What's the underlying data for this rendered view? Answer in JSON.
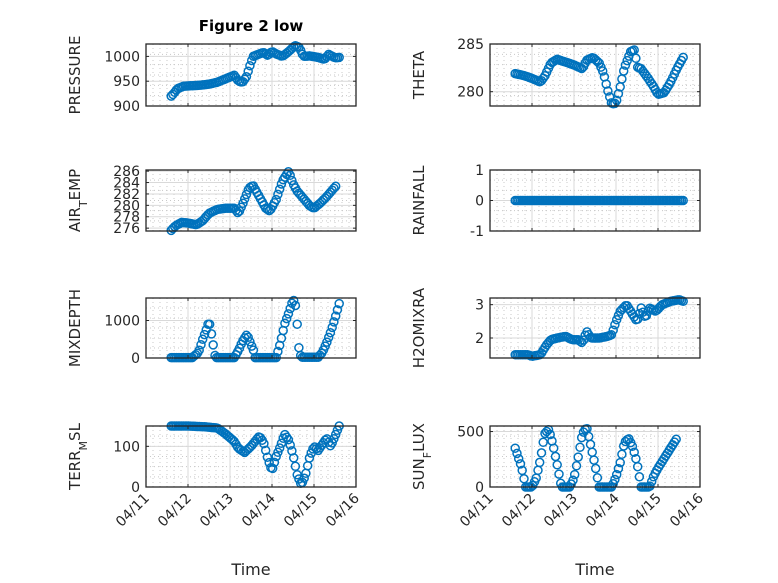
{
  "figure": {
    "title": "Figure 2 low",
    "marker_color": "#0072BD",
    "axis_color": "#262626",
    "grid_color": "#d9d9d9"
  },
  "chart_data": [
    {
      "type": "scatter",
      "panel": "top-left",
      "ylabel": "PRESSURE",
      "ylabel_sub": "",
      "ylabel_rest": "",
      "title": "Figure 2 low",
      "xlabel": "",
      "x_is_days_since": "04/11",
      "xlim": [
        0,
        5
      ],
      "ylim": [
        900,
        1025
      ],
      "yticks": [
        900,
        950,
        1000
      ],
      "xticks": [
        0,
        1,
        2,
        3,
        4,
        5
      ],
      "xticklabels": [
        "04/11",
        "04/12",
        "04/13",
        "04/14",
        "04/15",
        "04/16"
      ],
      "show_xticklabels": false,
      "grid": true,
      "minor_grid": true,
      "points": [
        [
          0.6,
          920
        ],
        [
          0.65,
          924
        ],
        [
          0.75,
          935
        ],
        [
          0.9,
          940
        ],
        [
          1.1,
          941
        ],
        [
          1.3,
          942
        ],
        [
          1.5,
          944
        ],
        [
          1.7,
          948
        ],
        [
          1.9,
          955
        ],
        [
          2.1,
          962
        ],
        [
          2.2,
          950
        ],
        [
          2.3,
          948
        ],
        [
          2.4,
          960
        ],
        [
          2.45,
          975
        ],
        [
          2.55,
          1000
        ],
        [
          2.7,
          1005
        ],
        [
          2.8,
          1008
        ],
        [
          2.9,
          1002
        ],
        [
          3.0,
          1010
        ],
        [
          3.1,
          1005
        ],
        [
          3.25,
          1000
        ],
        [
          3.4,
          1010
        ],
        [
          3.55,
          1022
        ],
        [
          3.65,
          1018
        ],
        [
          3.75,
          1000
        ],
        [
          3.9,
          1001
        ],
        [
          4.1,
          998
        ],
        [
          4.25,
          994
        ],
        [
          4.35,
          1004
        ],
        [
          4.5,
          997
        ],
        [
          4.6,
          998
        ]
      ]
    },
    {
      "type": "scatter",
      "panel": "top-right",
      "ylabel": "THETA",
      "ylabel_sub": "",
      "ylabel_rest": "",
      "xlim": [
        0,
        5
      ],
      "ylim": [
        278.5,
        285
      ],
      "yticks": [
        280,
        285
      ],
      "xticks": [
        0,
        1,
        2,
        3,
        4,
        5
      ],
      "xticklabels": [
        "04/11",
        "04/12",
        "04/13",
        "04/14",
        "04/15",
        "04/16"
      ],
      "show_xticklabels": false,
      "grid": true,
      "minor_grid": true,
      "points": [
        [
          0.6,
          281.9
        ],
        [
          0.8,
          281.7
        ],
        [
          1.0,
          281.4
        ],
        [
          1.2,
          281.0
        ],
        [
          1.3,
          281.6
        ],
        [
          1.45,
          283.0
        ],
        [
          1.6,
          283.4
        ],
        [
          1.8,
          283.1
        ],
        [
          2.0,
          282.8
        ],
        [
          2.2,
          282.4
        ],
        [
          2.3,
          283.3
        ],
        [
          2.45,
          283.6
        ],
        [
          2.6,
          283.0
        ],
        [
          2.7,
          282.0
        ],
        [
          2.8,
          280.2
        ],
        [
          2.9,
          278.7
        ],
        [
          3.0,
          278.8
        ],
        [
          3.1,
          280.5
        ],
        [
          3.2,
          282.5
        ],
        [
          3.35,
          284.2
        ],
        [
          3.45,
          284.4
        ],
        [
          3.5,
          282.6
        ],
        [
          3.6,
          282.4
        ],
        [
          3.75,
          281.5
        ],
        [
          3.9,
          280.5
        ],
        [
          4.0,
          279.7
        ],
        [
          4.15,
          279.9
        ],
        [
          4.3,
          281.0
        ],
        [
          4.45,
          282.4
        ],
        [
          4.6,
          283.6
        ]
      ]
    },
    {
      "type": "scatter",
      "panel": "second-left",
      "ylabel": "AIR",
      "ylabel_sub": "T",
      "ylabel_rest": "EMP",
      "xlim": [
        0,
        5
      ],
      "ylim": [
        275.5,
        286.2
      ],
      "yticks": [
        276,
        278,
        280,
        282,
        284,
        286
      ],
      "xticks": [
        0,
        1,
        2,
        3,
        4,
        5
      ],
      "xticklabels": [
        "04/11",
        "04/12",
        "04/13",
        "04/14",
        "04/15",
        "04/16"
      ],
      "show_xticklabels": false,
      "grid": true,
      "minor_grid": true,
      "points": [
        [
          0.6,
          275.6
        ],
        [
          0.7,
          276.4
        ],
        [
          0.85,
          277.0
        ],
        [
          1.0,
          276.9
        ],
        [
          1.2,
          276.6
        ],
        [
          1.35,
          277.3
        ],
        [
          1.5,
          278.6
        ],
        [
          1.7,
          279.3
        ],
        [
          1.9,
          279.5
        ],
        [
          2.1,
          279.5
        ],
        [
          2.2,
          278.6
        ],
        [
          2.3,
          280.2
        ],
        [
          2.45,
          283.0
        ],
        [
          2.55,
          283.5
        ],
        [
          2.7,
          281.5
        ],
        [
          2.85,
          279.5
        ],
        [
          2.95,
          279.0
        ],
        [
          3.1,
          281.0
        ],
        [
          3.25,
          284.3
        ],
        [
          3.4,
          286.0
        ],
        [
          3.5,
          283.8
        ],
        [
          3.6,
          282.5
        ],
        [
          3.75,
          281.2
        ],
        [
          3.9,
          279.9
        ],
        [
          4.0,
          279.5
        ],
        [
          4.15,
          280.4
        ],
        [
          4.3,
          281.5
        ],
        [
          4.45,
          282.8
        ],
        [
          4.55,
          283.6
        ]
      ]
    },
    {
      "type": "scatter",
      "panel": "second-right",
      "ylabel": "RAINFALL",
      "ylabel_sub": "",
      "ylabel_rest": "",
      "xlim": [
        0,
        5
      ],
      "ylim": [
        -1,
        1
      ],
      "yticks": [
        -1,
        0,
        1
      ],
      "xticks": [
        0,
        1,
        2,
        3,
        4,
        5
      ],
      "xticklabels": [
        "04/11",
        "04/12",
        "04/13",
        "04/14",
        "04/15",
        "04/16"
      ],
      "show_xticklabels": false,
      "grid": true,
      "minor_grid": true,
      "points": [
        [
          0.6,
          0
        ],
        [
          4.6,
          0
        ]
      ]
    },
    {
      "type": "scatter",
      "panel": "third-left",
      "ylabel": "MIXDEPTH",
      "ylabel_sub": "",
      "ylabel_rest": "",
      "xlim": [
        0,
        5
      ],
      "ylim": [
        0,
        1600
      ],
      "yticks": [
        0,
        1000
      ],
      "xticks": [
        0,
        1,
        2,
        3,
        4,
        5
      ],
      "xticklabels": [
        "04/11",
        "04/12",
        "04/13",
        "04/14",
        "04/15",
        "04/16"
      ],
      "show_xticklabels": false,
      "grid": true,
      "minor_grid": true,
      "points": [
        [
          0.6,
          10
        ],
        [
          1.1,
          10
        ],
        [
          1.25,
          150
        ],
        [
          1.35,
          500
        ],
        [
          1.45,
          800
        ],
        [
          1.5,
          1000
        ],
        [
          1.55,
          700
        ],
        [
          1.6,
          350
        ],
        [
          1.65,
          10
        ],
        [
          2.1,
          10
        ],
        [
          2.2,
          200
        ],
        [
          2.3,
          450
        ],
        [
          2.4,
          620
        ],
        [
          2.45,
          520
        ],
        [
          2.5,
          350
        ],
        [
          2.55,
          250
        ],
        [
          2.6,
          10
        ],
        [
          3.1,
          10
        ],
        [
          3.2,
          400
        ],
        [
          3.3,
          900
        ],
        [
          3.4,
          1200
        ],
        [
          3.5,
          1550
        ],
        [
          3.55,
          1500
        ],
        [
          3.6,
          900
        ],
        [
          3.65,
          150
        ],
        [
          3.7,
          20
        ],
        [
          4.1,
          20
        ],
        [
          4.2,
          150
        ],
        [
          4.3,
          400
        ],
        [
          4.4,
          700
        ],
        [
          4.5,
          1050
        ],
        [
          4.6,
          1450
        ]
      ]
    },
    {
      "type": "scatter",
      "panel": "third-right",
      "ylabel": "H2OMIXRA",
      "ylabel_sub": "",
      "ylabel_rest": "",
      "xlim": [
        0,
        5
      ],
      "ylim": [
        1.4,
        3.2
      ],
      "yticks": [
        2,
        3
      ],
      "xticks": [
        0,
        1,
        2,
        3,
        4,
        5
      ],
      "xticklabels": [
        "04/11",
        "04/12",
        "04/13",
        "04/14",
        "04/15",
        "04/16"
      ],
      "show_xticklabels": false,
      "grid": true,
      "minor_grid": true,
      "points": [
        [
          0.6,
          1.5
        ],
        [
          0.9,
          1.5
        ],
        [
          1.0,
          1.45
        ],
        [
          1.2,
          1.5
        ],
        [
          1.35,
          1.8
        ],
        [
          1.45,
          1.95
        ],
        [
          1.6,
          2.0
        ],
        [
          1.8,
          2.05
        ],
        [
          1.95,
          1.95
        ],
        [
          2.1,
          1.95
        ],
        [
          2.2,
          1.85
        ],
        [
          2.3,
          2.2
        ],
        [
          2.4,
          2.0
        ],
        [
          2.6,
          2.0
        ],
        [
          2.8,
          2.05
        ],
        [
          2.9,
          2.1
        ],
        [
          3.0,
          2.5
        ],
        [
          3.1,
          2.8
        ],
        [
          3.25,
          3.0
        ],
        [
          3.4,
          2.7
        ],
        [
          3.5,
          2.5
        ],
        [
          3.6,
          2.9
        ],
        [
          3.7,
          2.6
        ],
        [
          3.8,
          2.9
        ],
        [
          3.95,
          2.8
        ],
        [
          4.1,
          3.0
        ],
        [
          4.3,
          3.1
        ],
        [
          4.5,
          3.15
        ],
        [
          4.6,
          3.1
        ]
      ]
    },
    {
      "type": "scatter",
      "panel": "bottom-left",
      "ylabel": "TERR",
      "ylabel_sub": "M",
      "ylabel_rest": "SL",
      "xlim": [
        0,
        5
      ],
      "ylim": [
        0,
        150
      ],
      "yticks": [
        0,
        100
      ],
      "xticks": [
        0,
        1,
        2,
        3,
        4,
        5
      ],
      "xticklabels": [
        "04/11",
        "04/12",
        "04/13",
        "04/14",
        "04/15",
        "04/16"
      ],
      "show_xticklabels": true,
      "grid": true,
      "minor_grid": true,
      "xlabel": "Time",
      "points": [
        [
          0.6,
          150
        ],
        [
          1.0,
          150
        ],
        [
          1.4,
          148
        ],
        [
          1.7,
          145
        ],
        [
          1.9,
          130
        ],
        [
          2.1,
          112
        ],
        [
          2.2,
          95
        ],
        [
          2.35,
          85
        ],
        [
          2.5,
          100
        ],
        [
          2.7,
          125
        ],
        [
          2.8,
          110
        ],
        [
          2.9,
          70
        ],
        [
          3.0,
          40
        ],
        [
          3.1,
          75
        ],
        [
          3.2,
          100
        ],
        [
          3.3,
          130
        ],
        [
          3.4,
          115
        ],
        [
          3.5,
          80
        ],
        [
          3.6,
          30
        ],
        [
          3.7,
          5
        ],
        [
          3.8,
          30
        ],
        [
          3.9,
          75
        ],
        [
          4.0,
          100
        ],
        [
          4.1,
          90
        ],
        [
          4.2,
          105
        ],
        [
          4.3,
          120
        ],
        [
          4.4,
          100
        ],
        [
          4.5,
          125
        ],
        [
          4.6,
          150
        ]
      ]
    },
    {
      "type": "scatter",
      "panel": "bottom-right",
      "ylabel": "SUN",
      "ylabel_sub": "F",
      "ylabel_rest": "LUX",
      "xlim": [
        0,
        5
      ],
      "ylim": [
        0,
        550
      ],
      "yticks": [
        0,
        500
      ],
      "xticks": [
        0,
        1,
        2,
        3,
        4,
        5
      ],
      "xticklabels": [
        "04/11",
        "04/12",
        "04/13",
        "04/14",
        "04/15",
        "04/16"
      ],
      "show_xticklabels": true,
      "grid": true,
      "minor_grid": true,
      "xlabel": "Time",
      "points": [
        [
          0.6,
          350
        ],
        [
          0.75,
          180
        ],
        [
          0.85,
          0
        ],
        [
          1.0,
          0
        ],
        [
          1.1,
          80
        ],
        [
          1.2,
          250
        ],
        [
          1.3,
          480
        ],
        [
          1.4,
          520
        ],
        [
          1.5,
          380
        ],
        [
          1.6,
          200
        ],
        [
          1.7,
          0
        ],
        [
          1.9,
          0
        ],
        [
          2.0,
          80
        ],
        [
          2.1,
          270
        ],
        [
          2.2,
          480
        ],
        [
          2.3,
          540
        ],
        [
          2.4,
          370
        ],
        [
          2.5,
          200
        ],
        [
          2.6,
          0
        ],
        [
          2.9,
          0
        ],
        [
          3.0,
          90
        ],
        [
          3.1,
          220
        ],
        [
          3.2,
          400
        ],
        [
          3.3,
          440
        ],
        [
          3.4,
          360
        ],
        [
          3.5,
          220
        ],
        [
          3.6,
          0
        ],
        [
          3.8,
          0
        ],
        [
          3.9,
          100
        ],
        [
          4.0,
          170
        ],
        [
          4.15,
          260
        ],
        [
          4.3,
          350
        ],
        [
          4.45,
          440
        ]
      ]
    }
  ]
}
